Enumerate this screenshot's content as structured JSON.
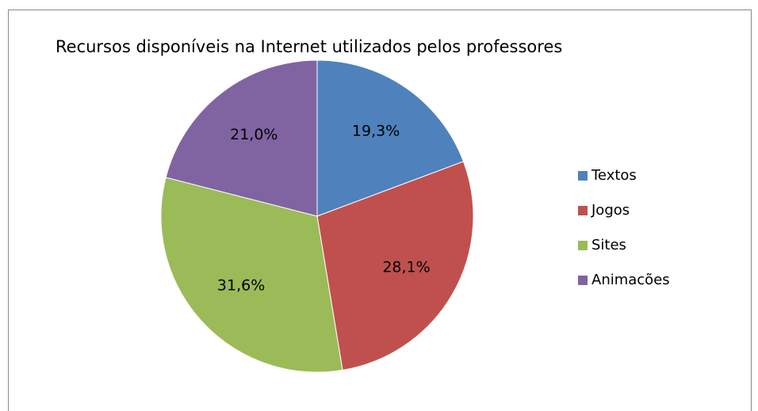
{
  "chart_data": {
    "type": "pie",
    "title": "Recursos disponíveis na Internet utilizados pelos professores",
    "categories": [
      "Textos",
      "Jogos",
      "Sites",
      "Animacões"
    ],
    "values": [
      19.3,
      28.1,
      31.6,
      21.0
    ],
    "value_labels": [
      "19,3%",
      "28,1%",
      "31,6%",
      "21,0%"
    ],
    "colors": [
      "#4F81BD",
      "#C0504D",
      "#9BBB59",
      "#8064A2"
    ],
    "legend": "right"
  }
}
